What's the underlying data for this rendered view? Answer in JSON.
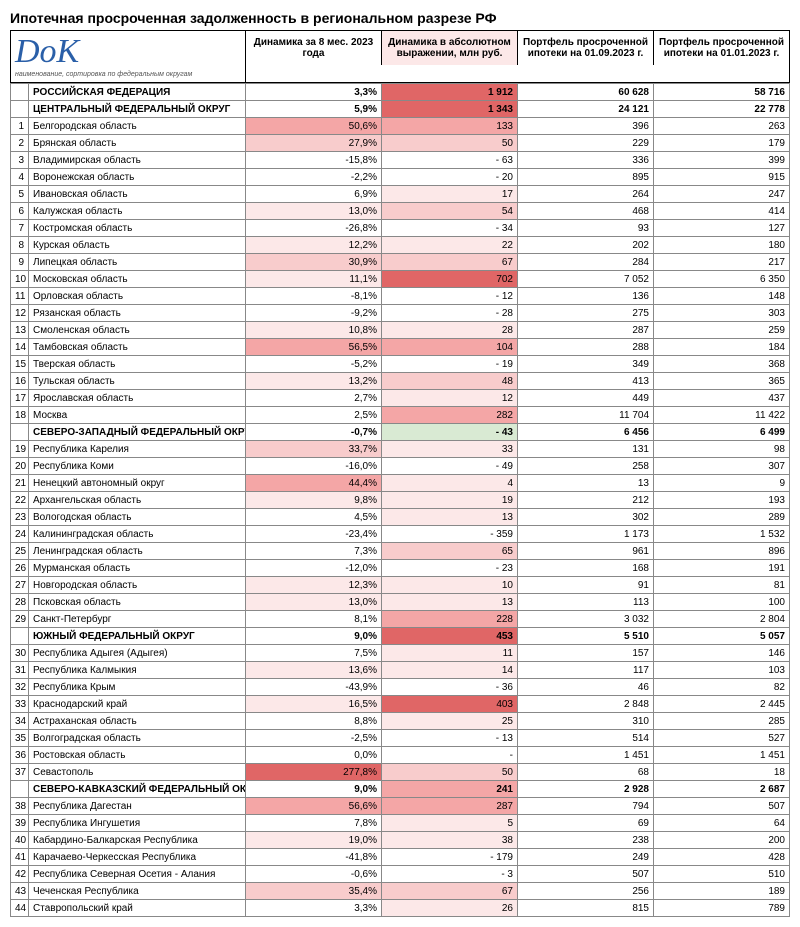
{
  "title": "Ипотечная просроченная задолженность в региональном разрезе РФ",
  "logo_text": "DoK",
  "logo_subtitle": "наименование, сортировка по федеральным округам",
  "columns": [
    "Динамика за 8 мес. 2023 года",
    "Динамика в абсолютном выражении, млн руб.",
    "Портфель просроченной ипотеки на 01.09.2023 г.",
    "Портфель просроченной ипотеки на 01.01.2023 г."
  ],
  "col_widths": [
    "18px",
    "217px",
    "1fr",
    "1fr",
    "1fr",
    "1fr"
  ],
  "colors": {
    "heat_strong": "#e06666",
    "heat_med": "#f4a6a6",
    "heat_light": "#f8cccc",
    "heat_vlight": "#fce8e8",
    "neg_light": "#d9ead3",
    "white": "#ffffff"
  },
  "rows": [
    {
      "n": "",
      "name": "РОССИЙСКАЯ ФЕДЕРАЦИЯ",
      "v1": "3,3%",
      "v2": "1 912",
      "v3": "60 628",
      "v4": "58 716",
      "bold": true,
      "c1": "#ffffff",
      "c2": "#e06666"
    },
    {
      "n": "",
      "name": "ЦЕНТРАЛЬНЫЙ ФЕДЕРАЛЬНЫЙ ОКРУГ",
      "v1": "5,9%",
      "v2": "1 343",
      "v3": "24 121",
      "v4": "22 778",
      "bold": true,
      "c1": "#ffffff",
      "c2": "#e06666"
    },
    {
      "n": "1",
      "name": "Белгородская область",
      "v1": "50,6%",
      "v2": "133",
      "v3": "396",
      "v4": "263",
      "c1": "#f4a6a6",
      "c2": "#f4a6a6"
    },
    {
      "n": "2",
      "name": "Брянская область",
      "v1": "27,9%",
      "v2": "50",
      "v3": "229",
      "v4": "179",
      "c1": "#f8cccc",
      "c2": "#f8cccc"
    },
    {
      "n": "3",
      "name": "Владимирская область",
      "v1": "-15,8%",
      "v2": "-                    63",
      "v3": "336",
      "v4": "399",
      "c1": "#ffffff",
      "c2": "#ffffff"
    },
    {
      "n": "4",
      "name": "Воронежская область",
      "v1": "-2,2%",
      "v2": "-                    20",
      "v3": "895",
      "v4": "915",
      "c1": "#ffffff",
      "c2": "#ffffff"
    },
    {
      "n": "5",
      "name": "Ивановская область",
      "v1": "6,9%",
      "v2": "17",
      "v3": "264",
      "v4": "247",
      "c1": "#ffffff",
      "c2": "#fce8e8"
    },
    {
      "n": "6",
      "name": "Калужская область",
      "v1": "13,0%",
      "v2": "54",
      "v3": "468",
      "v4": "414",
      "c1": "#fce8e8",
      "c2": "#f8cccc"
    },
    {
      "n": "7",
      "name": "Костромская область",
      "v1": "-26,8%",
      "v2": "-                    34",
      "v3": "93",
      "v4": "127",
      "c1": "#ffffff",
      "c2": "#ffffff"
    },
    {
      "n": "8",
      "name": "Курская область",
      "v1": "12,2%",
      "v2": "22",
      "v3": "202",
      "v4": "180",
      "c1": "#fce8e8",
      "c2": "#fce8e8"
    },
    {
      "n": "9",
      "name": "Липецкая область",
      "v1": "30,9%",
      "v2": "67",
      "v3": "284",
      "v4": "217",
      "c1": "#f8cccc",
      "c2": "#f8cccc"
    },
    {
      "n": "10",
      "name": "Московская область",
      "v1": "11,1%",
      "v2": "702",
      "v3": "7 052",
      "v4": "6 350",
      "c1": "#fce8e8",
      "c2": "#e06666"
    },
    {
      "n": "11",
      "name": "Орловская область",
      "v1": "-8,1%",
      "v2": "-                    12",
      "v3": "136",
      "v4": "148",
      "c1": "#ffffff",
      "c2": "#ffffff"
    },
    {
      "n": "12",
      "name": "Рязанская область",
      "v1": "-9,2%",
      "v2": "-                    28",
      "v3": "275",
      "v4": "303",
      "c1": "#ffffff",
      "c2": "#ffffff"
    },
    {
      "n": "13",
      "name": "Смоленская область",
      "v1": "10,8%",
      "v2": "28",
      "v3": "287",
      "v4": "259",
      "c1": "#fce8e8",
      "c2": "#fce8e8"
    },
    {
      "n": "14",
      "name": "Тамбовская область",
      "v1": "56,5%",
      "v2": "104",
      "v3": "288",
      "v4": "184",
      "c1": "#f4a6a6",
      "c2": "#f4a6a6"
    },
    {
      "n": "15",
      "name": "Тверская область",
      "v1": "-5,2%",
      "v2": "-                    19",
      "v3": "349",
      "v4": "368",
      "c1": "#ffffff",
      "c2": "#ffffff"
    },
    {
      "n": "16",
      "name": "Тульская область",
      "v1": "13,2%",
      "v2": "48",
      "v3": "413",
      "v4": "365",
      "c1": "#fce8e8",
      "c2": "#f8cccc"
    },
    {
      "n": "17",
      "name": "Ярославская область",
      "v1": "2,7%",
      "v2": "12",
      "v3": "449",
      "v4": "437",
      "c1": "#ffffff",
      "c2": "#fce8e8"
    },
    {
      "n": "18",
      "name": "Москва",
      "v1": "2,5%",
      "v2": "282",
      "v3": "11 704",
      "v4": "11 422",
      "c1": "#ffffff",
      "c2": "#f4a6a6"
    },
    {
      "n": "",
      "name": "СЕВЕРО-ЗАПАДНЫЙ ФЕДЕРАЛЬНЫЙ ОКРУГ",
      "v1": "-0,7%",
      "v2": "-                    43",
      "v3": "6 456",
      "v4": "6 499",
      "bold": true,
      "c1": "#ffffff",
      "c2": "#d9ead3"
    },
    {
      "n": "19",
      "name": "Республика Карелия",
      "v1": "33,7%",
      "v2": "33",
      "v3": "131",
      "v4": "98",
      "c1": "#f8cccc",
      "c2": "#fce8e8"
    },
    {
      "n": "20",
      "name": "Республика Коми",
      "v1": "-16,0%",
      "v2": "-                    49",
      "v3": "258",
      "v4": "307",
      "c1": "#ffffff",
      "c2": "#ffffff"
    },
    {
      "n": "21",
      "name": "Ненецкий автономный округ",
      "v1": "44,4%",
      "v2": "4",
      "v3": "13",
      "v4": "9",
      "c1": "#f4a6a6",
      "c2": "#fce8e8"
    },
    {
      "n": "22",
      "name": "Архангельская область",
      "v1": "9,8%",
      "v2": "19",
      "v3": "212",
      "v4": "193",
      "c1": "#fce8e8",
      "c2": "#fce8e8"
    },
    {
      "n": "23",
      "name": "Вологодская область",
      "v1": "4,5%",
      "v2": "13",
      "v3": "302",
      "v4": "289",
      "c1": "#ffffff",
      "c2": "#fce8e8"
    },
    {
      "n": "24",
      "name": "Калининградская область",
      "v1": "-23,4%",
      "v2": "-                  359",
      "v3": "1 173",
      "v4": "1 532",
      "c1": "#ffffff",
      "c2": "#ffffff"
    },
    {
      "n": "25",
      "name": "Ленинградская область",
      "v1": "7,3%",
      "v2": "65",
      "v3": "961",
      "v4": "896",
      "c1": "#ffffff",
      "c2": "#f8cccc"
    },
    {
      "n": "26",
      "name": "Мурманская область",
      "v1": "-12,0%",
      "v2": "-                    23",
      "v3": "168",
      "v4": "191",
      "c1": "#ffffff",
      "c2": "#ffffff"
    },
    {
      "n": "27",
      "name": "Новгородская область",
      "v1": "12,3%",
      "v2": "10",
      "v3": "91",
      "v4": "81",
      "c1": "#fce8e8",
      "c2": "#fce8e8"
    },
    {
      "n": "28",
      "name": "Псковская область",
      "v1": "13,0%",
      "v2": "13",
      "v3": "113",
      "v4": "100",
      "c1": "#fce8e8",
      "c2": "#fce8e8"
    },
    {
      "n": "29",
      "name": "Санкт-Петербург",
      "v1": "8,1%",
      "v2": "228",
      "v3": "3 032",
      "v4": "2 804",
      "c1": "#ffffff",
      "c2": "#f4a6a6"
    },
    {
      "n": "",
      "name": "ЮЖНЫЙ ФЕДЕРАЛЬНЫЙ ОКРУГ",
      "v1": "9,0%",
      "v2": "453",
      "v3": "5 510",
      "v4": "5 057",
      "bold": true,
      "c1": "#ffffff",
      "c2": "#e06666"
    },
    {
      "n": "30",
      "name": "Республика Адыгея (Адыгея)",
      "v1": "7,5%",
      "v2": "11",
      "v3": "157",
      "v4": "146",
      "c1": "#ffffff",
      "c2": "#fce8e8"
    },
    {
      "n": "31",
      "name": "Республика Калмыкия",
      "v1": "13,6%",
      "v2": "14",
      "v3": "117",
      "v4": "103",
      "c1": "#fce8e8",
      "c2": "#fce8e8"
    },
    {
      "n": "32",
      "name": "Республика Крым",
      "v1": "-43,9%",
      "v2": "-                    36",
      "v3": "46",
      "v4": "82",
      "c1": "#ffffff",
      "c2": "#ffffff"
    },
    {
      "n": "33",
      "name": "Краснодарский край",
      "v1": "16,5%",
      "v2": "403",
      "v3": "2 848",
      "v4": "2 445",
      "c1": "#fce8e8",
      "c2": "#e06666"
    },
    {
      "n": "34",
      "name": "Астраханская область",
      "v1": "8,8%",
      "v2": "25",
      "v3": "310",
      "v4": "285",
      "c1": "#ffffff",
      "c2": "#fce8e8"
    },
    {
      "n": "35",
      "name": "Волгоградская область",
      "v1": "-2,5%",
      "v2": "-                    13",
      "v3": "514",
      "v4": "527",
      "c1": "#ffffff",
      "c2": "#ffffff"
    },
    {
      "n": "36",
      "name": "Ростовская область",
      "v1": "0,0%",
      "v2": "-",
      "v3": "1 451",
      "v4": "1 451",
      "c1": "#ffffff",
      "c2": "#ffffff"
    },
    {
      "n": "37",
      "name": "Севастополь",
      "v1": "277,8%",
      "v2": "50",
      "v3": "68",
      "v4": "18",
      "c1": "#e06666",
      "c2": "#f8cccc"
    },
    {
      "n": "",
      "name": "СЕВЕРО-КАВКАЗСКИЙ ФЕДЕРАЛЬНЫЙ ОКРУГ",
      "v1": "9,0%",
      "v2": "241",
      "v3": "2 928",
      "v4": "2 687",
      "bold": true,
      "c1": "#ffffff",
      "c2": "#f4a6a6"
    },
    {
      "n": "38",
      "name": "Республика Дагестан",
      "v1": "56,6%",
      "v2": "287",
      "v3": "794",
      "v4": "507",
      "c1": "#f4a6a6",
      "c2": "#f4a6a6"
    },
    {
      "n": "39",
      "name": "Республика Ингушетия",
      "v1": "7,8%",
      "v2": "5",
      "v3": "69",
      "v4": "64",
      "c1": "#ffffff",
      "c2": "#fce8e8"
    },
    {
      "n": "40",
      "name": "Кабардино-Балкарская Республика",
      "v1": "19,0%",
      "v2": "38",
      "v3": "238",
      "v4": "200",
      "c1": "#fce8e8",
      "c2": "#fce8e8"
    },
    {
      "n": "41",
      "name": "Карачаево-Черкесская Республика",
      "v1": "-41,8%",
      "v2": "-                  179",
      "v3": "249",
      "v4": "428",
      "c1": "#ffffff",
      "c2": "#ffffff"
    },
    {
      "n": "42",
      "name": "Республика Северная Осетия - Алания",
      "v1": "-0,6%",
      "v2": "-                      3",
      "v3": "507",
      "v4": "510",
      "c1": "#ffffff",
      "c2": "#ffffff"
    },
    {
      "n": "43",
      "name": "Чеченская Республика",
      "v1": "35,4%",
      "v2": "67",
      "v3": "256",
      "v4": "189",
      "c1": "#f8cccc",
      "c2": "#f8cccc"
    },
    {
      "n": "44",
      "name": "Ставропольский край",
      "v1": "3,3%",
      "v2": "26",
      "v3": "815",
      "v4": "789",
      "c1": "#ffffff",
      "c2": "#fce8e8"
    }
  ]
}
